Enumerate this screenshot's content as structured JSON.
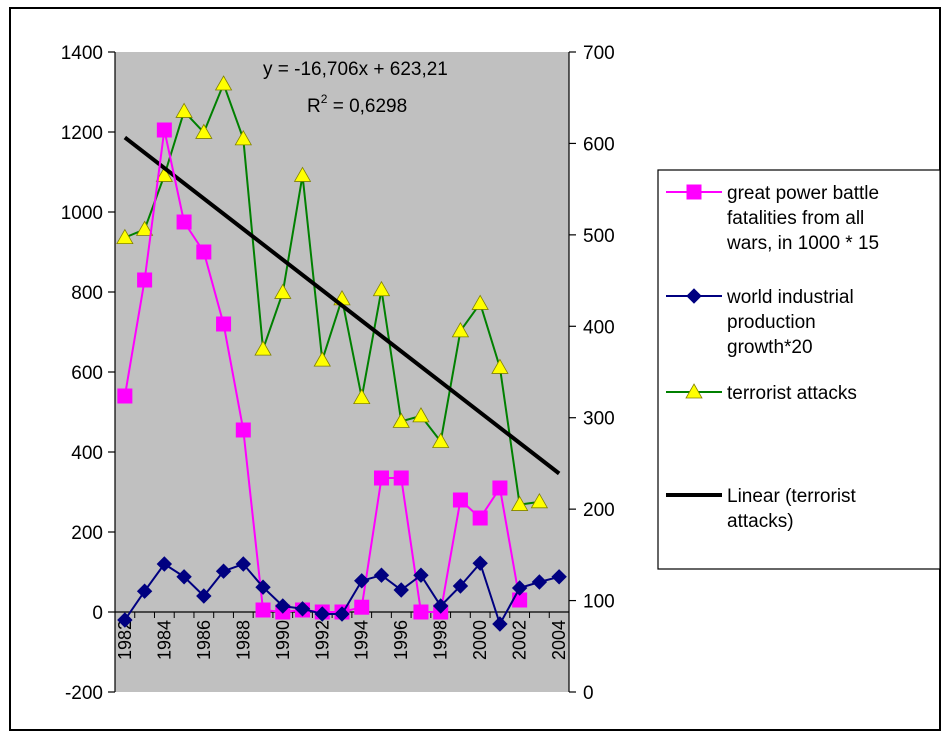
{
  "chart_data": {
    "type": "line",
    "x": [
      1982,
      1983,
      1984,
      1985,
      1986,
      1987,
      1988,
      1989,
      1990,
      1991,
      1992,
      1993,
      1994,
      1995,
      1996,
      1997,
      1998,
      1999,
      2000,
      2001,
      2002,
      2003,
      2004
    ],
    "x_tick_labels": [
      "1982",
      "1984",
      "1986",
      "1988",
      "1990",
      "1992",
      "1994",
      "1996",
      "1998",
      "2000",
      "2002",
      "2004"
    ],
    "y_left": {
      "ylim": [
        -200,
        1400
      ],
      "ticks": [
        "-200",
        "0",
        "200",
        "400",
        "600",
        "800",
        "1000",
        "1200",
        "1400"
      ]
    },
    "y_right": {
      "ylim": [
        0,
        700
      ],
      "ticks": [
        "0",
        "100",
        "200",
        "300",
        "400",
        "500",
        "600",
        "700"
      ]
    },
    "grid": false,
    "legend_position": "right",
    "series": [
      {
        "name_lines": [
          "great power battle",
          "fatalities from all",
          "wars, in 1000 * 15"
        ],
        "axis": "left",
        "color": "#ff00ff",
        "marker": "square",
        "values": [
          540,
          830,
          1205,
          975,
          900,
          720,
          455,
          5,
          0,
          5,
          0,
          0,
          12,
          335,
          335,
          0,
          0,
          280,
          235,
          310,
          30,
          null,
          null
        ]
      },
      {
        "name_lines": [
          "world industrial",
          "production",
          "growth*20"
        ],
        "axis": "left",
        "color": "#000080",
        "marker": "diamond",
        "values": [
          -20,
          52,
          120,
          88,
          40,
          102,
          120,
          62,
          15,
          8,
          -5,
          -5,
          78,
          92,
          55,
          92,
          15,
          65,
          122,
          -30,
          60,
          75,
          88
        ]
      },
      {
        "name_lines": [
          "terrorist attacks"
        ],
        "axis": "right",
        "color": "#008000",
        "marker_color": "#ffff00",
        "marker": "triangle",
        "values": [
          497,
          506,
          565,
          635,
          612,
          665,
          605,
          375,
          437,
          565,
          363,
          430,
          322,
          440,
          296,
          302,
          274,
          395,
          425,
          355,
          205,
          208,
          null
        ]
      }
    ],
    "trendline": {
      "name_lines": [
        "Linear (terrorist",
        "attacks)"
      ],
      "series_index": 2,
      "slope": -16.706,
      "intercept": 623.21,
      "color": "#000000",
      "equation_text": "y = -16,706x + 623,21",
      "r2_label": "R",
      "r2_exponent": "2",
      "r2_value": " = 0,6298"
    }
  }
}
